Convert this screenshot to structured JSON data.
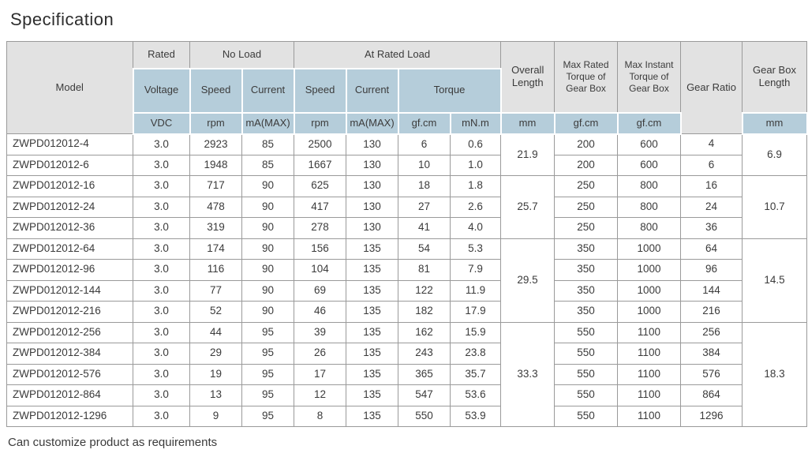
{
  "page": {
    "title": "Specification",
    "footer_note": "Can customize product as requirements"
  },
  "colors": {
    "header_gray": "#e2e2e2",
    "header_blue": "#b5cdda",
    "grid_border": "#9a9a9a",
    "text": "#3b3b3b"
  },
  "table": {
    "header": {
      "model": "Model",
      "rated": "Rated",
      "no_load": "No Load",
      "at_rated_load": "At Rated Load",
      "voltage": "Voltage",
      "speed": "Speed",
      "current": "Current",
      "torque": "Torque",
      "overall_length": "Overall Length",
      "max_rated_torque": "Max Rated Torque of Gear Box",
      "max_instant_torque": "Max Instant Torque of Gear Box",
      "gear_ratio": "Gear Ratio",
      "gear_box_length": "Gear Box Length"
    },
    "units": {
      "voltage": "VDC",
      "nl_speed": "rpm",
      "nl_current": "mA(MAX)",
      "rl_speed": "rpm",
      "rl_current": "mA(MAX)",
      "torque_gfcm": "gf.cm",
      "torque_mnm": "mN.m",
      "overall_length": "mm",
      "max_rated_torque": "gf.cm",
      "max_instant_torque": "gf.cm",
      "gear_box_length": "mm"
    },
    "rows": [
      {
        "model": "ZWPD012012-4",
        "voltage": "3.0",
        "nl_speed": "2923",
        "nl_current": "85",
        "rl_speed": "2500",
        "rl_current": "130",
        "torque_gfcm": "6",
        "torque_mnm": "0.6",
        "max_rated_torque": "200",
        "max_instant_torque": "600",
        "gear_ratio": "4"
      },
      {
        "model": "ZWPD012012-6",
        "voltage": "3.0",
        "nl_speed": "1948",
        "nl_current": "85",
        "rl_speed": "1667",
        "rl_current": "130",
        "torque_gfcm": "10",
        "torque_mnm": "1.0",
        "max_rated_torque": "200",
        "max_instant_torque": "600",
        "gear_ratio": "6"
      },
      {
        "model": "ZWPD012012-16",
        "voltage": "3.0",
        "nl_speed": "717",
        "nl_current": "90",
        "rl_speed": "625",
        "rl_current": "130",
        "torque_gfcm": "18",
        "torque_mnm": "1.8",
        "max_rated_torque": "250",
        "max_instant_torque": "800",
        "gear_ratio": "16"
      },
      {
        "model": "ZWPD012012-24",
        "voltage": "3.0",
        "nl_speed": "478",
        "nl_current": "90",
        "rl_speed": "417",
        "rl_current": "130",
        "torque_gfcm": "27",
        "torque_mnm": "2.6",
        "max_rated_torque": "250",
        "max_instant_torque": "800",
        "gear_ratio": "24"
      },
      {
        "model": "ZWPD012012-36",
        "voltage": "3.0",
        "nl_speed": "319",
        "nl_current": "90",
        "rl_speed": "278",
        "rl_current": "130",
        "torque_gfcm": "41",
        "torque_mnm": "4.0",
        "max_rated_torque": "250",
        "max_instant_torque": "800",
        "gear_ratio": "36"
      },
      {
        "model": "ZWPD012012-64",
        "voltage": "3.0",
        "nl_speed": "174",
        "nl_current": "90",
        "rl_speed": "156",
        "rl_current": "135",
        "torque_gfcm": "54",
        "torque_mnm": "5.3",
        "max_rated_torque": "350",
        "max_instant_torque": "1000",
        "gear_ratio": "64"
      },
      {
        "model": "ZWPD012012-96",
        "voltage": "3.0",
        "nl_speed": "116",
        "nl_current": "90",
        "rl_speed": "104",
        "rl_current": "135",
        "torque_gfcm": "81",
        "torque_mnm": "7.9",
        "max_rated_torque": "350",
        "max_instant_torque": "1000",
        "gear_ratio": "96"
      },
      {
        "model": "ZWPD012012-144",
        "voltage": "3.0",
        "nl_speed": "77",
        "nl_current": "90",
        "rl_speed": "69",
        "rl_current": "135",
        "torque_gfcm": "122",
        "torque_mnm": "11.9",
        "max_rated_torque": "350",
        "max_instant_torque": "1000",
        "gear_ratio": "144"
      },
      {
        "model": "ZWPD012012-216",
        "voltage": "3.0",
        "nl_speed": "52",
        "nl_current": "90",
        "rl_speed": "46",
        "rl_current": "135",
        "torque_gfcm": "182",
        "torque_mnm": "17.9",
        "max_rated_torque": "350",
        "max_instant_torque": "1000",
        "gear_ratio": "216"
      },
      {
        "model": "ZWPD012012-256",
        "voltage": "3.0",
        "nl_speed": "44",
        "nl_current": "95",
        "rl_speed": "39",
        "rl_current": "135",
        "torque_gfcm": "162",
        "torque_mnm": "15.9",
        "max_rated_torque": "550",
        "max_instant_torque": "1100",
        "gear_ratio": "256"
      },
      {
        "model": "ZWPD012012-384",
        "voltage": "3.0",
        "nl_speed": "29",
        "nl_current": "95",
        "rl_speed": "26",
        "rl_current": "135",
        "torque_gfcm": "243",
        "torque_mnm": "23.8",
        "max_rated_torque": "550",
        "max_instant_torque": "1100",
        "gear_ratio": "384"
      },
      {
        "model": "ZWPD012012-576",
        "voltage": "3.0",
        "nl_speed": "19",
        "nl_current": "95",
        "rl_speed": "17",
        "rl_current": "135",
        "torque_gfcm": "365",
        "torque_mnm": "35.7",
        "max_rated_torque": "550",
        "max_instant_torque": "1100",
        "gear_ratio": "576"
      },
      {
        "model": "ZWPD012012-864",
        "voltage": "3.0",
        "nl_speed": "13",
        "nl_current": "95",
        "rl_speed": "12",
        "rl_current": "135",
        "torque_gfcm": "547",
        "torque_mnm": "53.6",
        "max_rated_torque": "550",
        "max_instant_torque": "1100",
        "gear_ratio": "864"
      },
      {
        "model": "ZWPD012012-1296",
        "voltage": "3.0",
        "nl_speed": "9",
        "nl_current": "95",
        "rl_speed": "8",
        "rl_current": "135",
        "torque_gfcm": "550",
        "torque_mnm": "53.9",
        "max_rated_torque": "550",
        "max_instant_torque": "1100",
        "gear_ratio": "1296"
      }
    ],
    "groups": [
      {
        "span": 2,
        "overall_length": "21.9",
        "gear_box_length": "6.9"
      },
      {
        "span": 3,
        "overall_length": "25.7",
        "gear_box_length": "10.7"
      },
      {
        "span": 4,
        "overall_length": "29.5",
        "gear_box_length": "14.5"
      },
      {
        "span": 5,
        "overall_length": "33.3",
        "gear_box_length": "18.3"
      }
    ]
  }
}
